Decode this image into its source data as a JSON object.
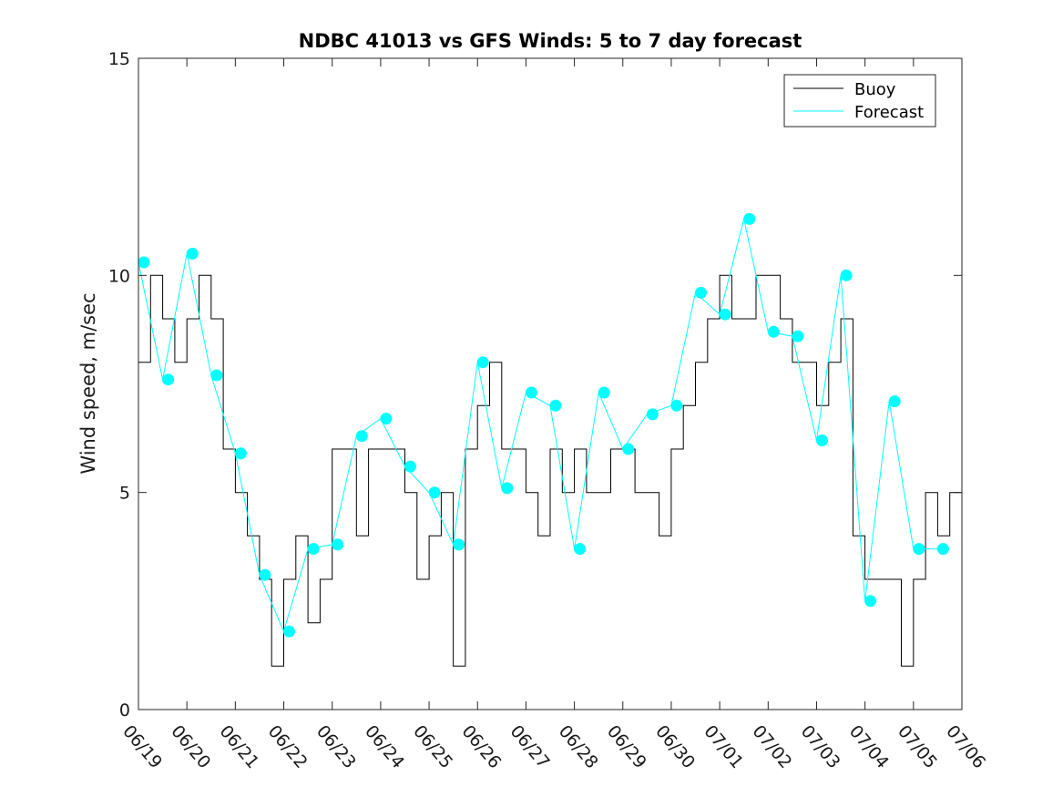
{
  "chart_data": {
    "type": "line",
    "title": "NDBC 41013 vs GFS Winds: 5 to 7 day forecast",
    "xlabel": "",
    "ylabel": "Wind speed, m/sec",
    "xlim": [
      0,
      17
    ],
    "ylim": [
      0,
      15
    ],
    "x_tick_labels": [
      "06/19",
      "06/20",
      "06/21",
      "06/22",
      "06/23",
      "06/24",
      "06/25",
      "06/26",
      "06/27",
      "06/28",
      "06/29",
      "06/30",
      "07/01",
      "07/02",
      "07/03",
      "07/04",
      "07/05",
      "07/06"
    ],
    "y_ticks": [
      0,
      5,
      10,
      15
    ],
    "y_tick_labels": [
      "0",
      "5",
      "10",
      "15"
    ],
    "grid": false,
    "legend_position": "top-right",
    "colors": {
      "buoy": "#000000",
      "forecast": "#00ffff",
      "axis": "#262626"
    },
    "series": [
      {
        "name": "Buoy",
        "style": "step-line",
        "x": [
          0,
          0.25,
          0.5,
          0.75,
          1,
          1.25,
          1.5,
          1.75,
          2,
          2.25,
          2.5,
          2.75,
          3,
          3.25,
          3.5,
          3.75,
          4,
          4.25,
          4.5,
          4.75,
          5,
          5.25,
          5.5,
          5.75,
          6,
          6.25,
          6.5,
          6.75,
          7,
          7.25,
          7.5,
          7.75,
          8,
          8.25,
          8.5,
          8.75,
          9,
          9.25,
          9.5,
          9.75,
          10,
          10.25,
          10.5,
          10.75,
          11,
          11.25,
          11.5,
          11.75,
          12,
          12.25,
          12.5,
          12.75,
          13,
          13.25,
          13.5,
          13.75,
          14,
          14.25,
          14.5,
          14.75,
          15,
          15.25,
          15.5,
          15.75,
          16,
          16.25,
          16.5,
          16.75,
          17
        ],
        "y": [
          8,
          10,
          9,
          8,
          9,
          10,
          9,
          6,
          5,
          4,
          3,
          1,
          3,
          4,
          2,
          3,
          6,
          6,
          4,
          6,
          6,
          6,
          5,
          3,
          4,
          5,
          1,
          6,
          7,
          8,
          6,
          6,
          5,
          4,
          6,
          5,
          6,
          5,
          5,
          6,
          6,
          5,
          5,
          4,
          6,
          7,
          8,
          9,
          10,
          9,
          9,
          10,
          10,
          9,
          8,
          8,
          7,
          8,
          9,
          4,
          3,
          3,
          3,
          1,
          3,
          5,
          4,
          5,
          5
        ]
      },
      {
        "name": "Forecast",
        "style": "line-with-markers",
        "x": [
          0,
          0.5,
          1,
          1.5,
          2,
          2.5,
          3,
          3.5,
          4,
          4.5,
          5,
          5.5,
          6,
          6.5,
          7,
          7.5,
          8,
          8.5,
          9,
          9.5,
          10,
          10.5,
          11,
          11.5,
          12,
          12.5,
          13,
          13.5,
          14,
          14.5,
          15,
          15.5,
          16,
          16.5
        ],
        "y": [
          10.3,
          7.6,
          10.5,
          7.7,
          5.9,
          3.1,
          1.8,
          3.7,
          3.8,
          6.3,
          6.7,
          5.6,
          5.0,
          3.8,
          8.0,
          5.1,
          7.3,
          7.0,
          3.7,
          7.3,
          6.0,
          6.8,
          7.0,
          9.6,
          9.1,
          11.3,
          8.7,
          8.6,
          6.2,
          10.0,
          2.5,
          7.1,
          3.7,
          3.7
        ]
      }
    ]
  }
}
